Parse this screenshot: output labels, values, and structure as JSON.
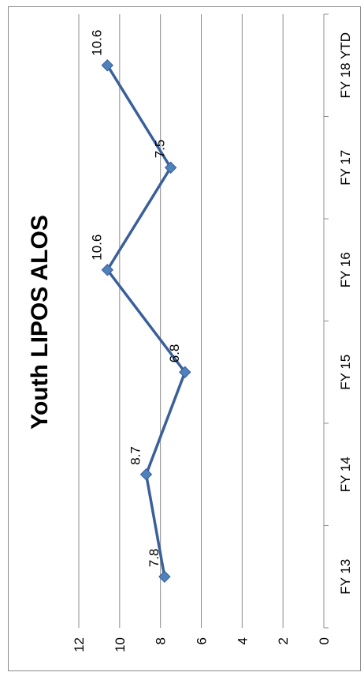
{
  "chart_data": {
    "type": "line",
    "title": "Youth LIPOS ALOS",
    "categories": [
      "FY 13",
      "FY 14",
      "FY 15",
      "FY 16",
      "FY 17",
      "FY 18 YTD"
    ],
    "series": [
      {
        "values": [
          7.8,
          8.7,
          6.8,
          10.6,
          7.5,
          10.6
        ]
      }
    ],
    "data_labels": [
      "7.8",
      "8.7",
      "6.8",
      "10.6",
      "7.5",
      "10.6"
    ],
    "ylim": [
      0,
      12
    ],
    "yticks": [
      "0",
      "2",
      "4",
      "6",
      "8",
      "10",
      "12"
    ],
    "xlabel": "",
    "ylabel": "",
    "grid": true,
    "orientation": "rotated-90-clockwise",
    "colors": {
      "line": "#3a5f9a",
      "marker": "#4f81bd",
      "marker_edge": "#3a5f9a",
      "grid": "#8c8c8c",
      "axis": "#8c8c8c"
    }
  }
}
